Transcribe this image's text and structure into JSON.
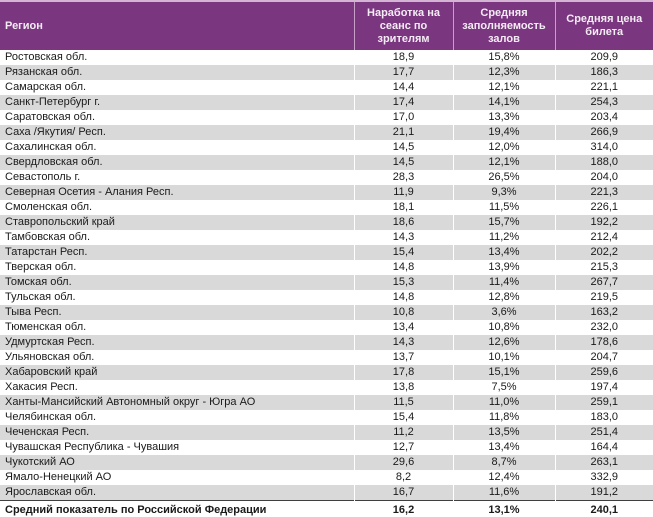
{
  "table": {
    "headers": [
      "Регион",
      "Наработка на сеанс по зрителям",
      "Средняя заполняемость залов",
      "Средняя цена билета"
    ],
    "rows": [
      [
        "Ростовская обл.",
        "18,9",
        "15,8%",
        "209,9"
      ],
      [
        "Рязанская обл.",
        "17,7",
        "12,3%",
        "186,3"
      ],
      [
        "Самарская обл.",
        "14,4",
        "12,1%",
        "221,1"
      ],
      [
        "Санкт-Петербург г.",
        "17,4",
        "14,1%",
        "254,3"
      ],
      [
        "Саратовская обл.",
        "17,0",
        "13,3%",
        "203,4"
      ],
      [
        "Саха /Якутия/ Респ.",
        "21,1",
        "19,4%",
        "266,9"
      ],
      [
        "Сахалинская обл.",
        "14,5",
        "12,0%",
        "314,0"
      ],
      [
        "Свердловская обл.",
        "14,5",
        "12,1%",
        "188,0"
      ],
      [
        "Севастополь г.",
        "28,3",
        "26,5%",
        "204,0"
      ],
      [
        "Северная Осетия - Алания Респ.",
        "11,9",
        "9,3%",
        "221,3"
      ],
      [
        "Смоленская обл.",
        "18,1",
        "11,5%",
        "226,1"
      ],
      [
        "Ставропольский край",
        "18,6",
        "15,7%",
        "192,2"
      ],
      [
        "Тамбовская обл.",
        "14,3",
        "11,2%",
        "212,4"
      ],
      [
        "Татарстан Респ.",
        "15,4",
        "13,4%",
        "202,2"
      ],
      [
        "Тверская обл.",
        "14,8",
        "13,9%",
        "215,3"
      ],
      [
        "Томская обл.",
        "15,3",
        "11,4%",
        "267,7"
      ],
      [
        "Тульская обл.",
        "14,8",
        "12,8%",
        "219,5"
      ],
      [
        "Тыва Респ.",
        "10,8",
        "3,6%",
        "163,2"
      ],
      [
        "Тюменская обл.",
        "13,4",
        "10,8%",
        "232,0"
      ],
      [
        "Удмуртская Респ.",
        "14,3",
        "12,6%",
        "178,6"
      ],
      [
        "Ульяновская обл.",
        "13,7",
        "10,1%",
        "204,7"
      ],
      [
        "Хабаровский край",
        "17,8",
        "15,1%",
        "259,6"
      ],
      [
        "Хакасия Респ.",
        "13,8",
        "7,5%",
        "197,4"
      ],
      [
        "Ханты-Мансийский Автономный округ - Югра АО",
        "11,5",
        "11,0%",
        "259,1"
      ],
      [
        "Челябинская обл.",
        "15,4",
        "11,8%",
        "183,0"
      ],
      [
        "Чеченская Респ.",
        "11,2",
        "13,5%",
        "251,4"
      ],
      [
        "Чувашская Республика - Чувашия",
        "12,7",
        "13,4%",
        "164,4"
      ],
      [
        "Чукотский АО",
        "29,6",
        "8,7%",
        "263,1"
      ],
      [
        "Ямало-Ненецкий АО",
        "8,2",
        "12,4%",
        "332,9"
      ],
      [
        "Ярославская обл.",
        "16,7",
        "11,6%",
        "191,2"
      ]
    ],
    "total": [
      "Средний показатель по Российской Федерации",
      "16,2",
      "13,1%",
      "240,1"
    ]
  },
  "colors": {
    "header_bg": "#7b3680",
    "header_text": "#f4ecf4",
    "stripe": "#d9d9d9",
    "body_text": "#1a1a1a"
  },
  "chart_data": {
    "type": "table",
    "title": "",
    "columns": [
      "Регион",
      "Наработка на сеанс по зрителям",
      "Средняя заполняемость залов",
      "Средняя цена билета"
    ],
    "rows": [
      [
        "Ростовская обл.",
        18.9,
        "15,8%",
        209.9
      ],
      [
        "Рязанская обл.",
        17.7,
        "12,3%",
        186.3
      ],
      [
        "Самарская обл.",
        14.4,
        "12,1%",
        221.1
      ],
      [
        "Санкт-Петербург г.",
        17.4,
        "14,1%",
        254.3
      ],
      [
        "Саратовская обл.",
        17.0,
        "13,3%",
        203.4
      ],
      [
        "Саха /Якутия/ Респ.",
        21.1,
        "19,4%",
        266.9
      ],
      [
        "Сахалинская обл.",
        14.5,
        "12,0%",
        314.0
      ],
      [
        "Свердловская обл.",
        14.5,
        "12,1%",
        188.0
      ],
      [
        "Севастополь г.",
        28.3,
        "26,5%",
        204.0
      ],
      [
        "Северная Осетия - Алания Респ.",
        11.9,
        "9,3%",
        221.3
      ],
      [
        "Смоленская обл.",
        18.1,
        "11,5%",
        226.1
      ],
      [
        "Ставропольский край",
        18.6,
        "15,7%",
        192.2
      ],
      [
        "Тамбовская обл.",
        14.3,
        "11,2%",
        212.4
      ],
      [
        "Татарстан Респ.",
        15.4,
        "13,4%",
        202.2
      ],
      [
        "Тверская обл.",
        14.8,
        "13,9%",
        215.3
      ],
      [
        "Томская обл.",
        15.3,
        "11,4%",
        267.7
      ],
      [
        "Тульская обл.",
        14.8,
        "12,8%",
        219.5
      ],
      [
        "Тыва Респ.",
        10.8,
        "3,6%",
        163.2
      ],
      [
        "Тюменская обл.",
        13.4,
        "10,8%",
        232.0
      ],
      [
        "Удмуртская Респ.",
        14.3,
        "12,6%",
        178.6
      ],
      [
        "Ульяновская обл.",
        13.7,
        "10,1%",
        204.7
      ],
      [
        "Хабаровский край",
        17.8,
        "15,1%",
        259.6
      ],
      [
        "Хакасия Респ.",
        13.8,
        "7,5%",
        197.4
      ],
      [
        "Ханты-Мансийский Автономный округ - Югра АО",
        11.5,
        "11,0%",
        259.1
      ],
      [
        "Челябинская обл.",
        15.4,
        "11,8%",
        183.0
      ],
      [
        "Чеченская Респ.",
        11.2,
        "13,5%",
        251.4
      ],
      [
        "Чувашская Республика - Чувашия",
        12.7,
        "13,4%",
        164.4
      ],
      [
        "Чукотский АО",
        29.6,
        "8,7%",
        263.1
      ],
      [
        "Ямало-Ненецкий АО",
        8.2,
        "12,4%",
        332.9
      ],
      [
        "Ярославская обл.",
        16.7,
        "11,6%",
        191.2
      ],
      [
        "Средний показатель по Российской Федерации",
        16.2,
        "13,1%",
        240.1
      ]
    ]
  }
}
